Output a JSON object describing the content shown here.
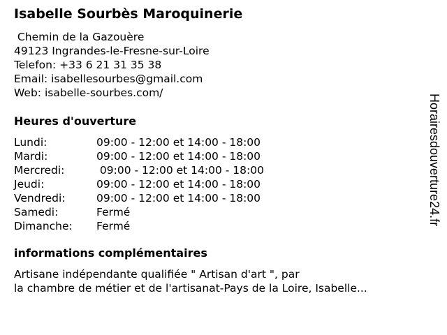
{
  "title": "Isabelle Sourbès Maroquinerie",
  "contact": {
    "street": " Chemin de la Gazouère",
    "city": "49123 Ingrandes-le-Fresne-sur-Loire",
    "phone": "Telefon: +33 6 21 31 35 38",
    "email": "Email: isabellesourbes@gmail.com",
    "web": "Web: isabelle-sourbes.com/"
  },
  "hours_heading": "Heures d'ouverture",
  "hours": [
    {
      "day": "Lundi:",
      "time": "09:00 - 12:00 et 14:00 - 18:00"
    },
    {
      "day": "Mardi:",
      "time": "09:00 - 12:00 et 14:00 - 18:00"
    },
    {
      "day": "Mercredi:",
      "time": " 09:00 - 12:00 et 14:00 - 18:00"
    },
    {
      "day": "Jeudi:",
      "time": "09:00 - 12:00 et 14:00 - 18:00"
    },
    {
      "day": "Vendredi:",
      "time": "09:00 - 12:00 et 14:00 - 18:00"
    },
    {
      "day": "Samedi:",
      "time": "Fermé"
    },
    {
      "day": "Dimanche:",
      "time": "Fermé"
    }
  ],
  "info_heading": "informations complémentaires",
  "info_lines": [
    "Artisane indépendante qualifiée \" Artisan d'art \", par",
    "la chambre de métier et de l'artisanat-Pays de la Loire, Isabelle..."
  ],
  "watermark": "Horairesdouverture24.fr"
}
